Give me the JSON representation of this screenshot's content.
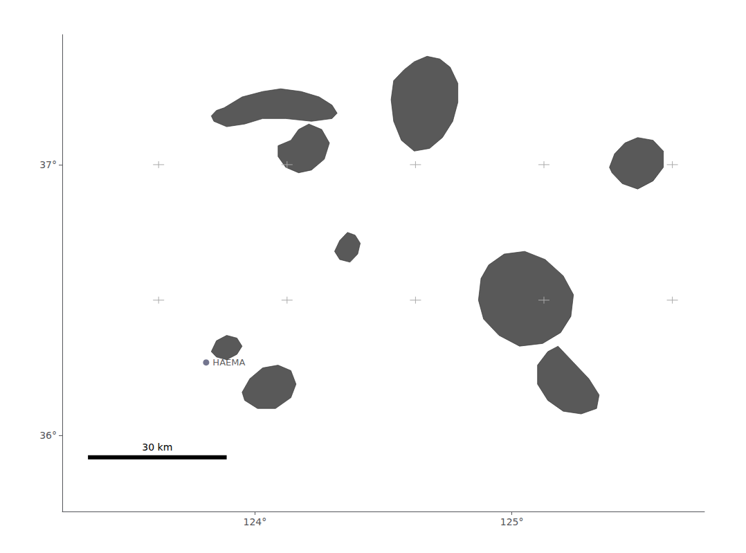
{
  "chart_data": {
    "type": "map",
    "xlim": [
      123.25,
      125.75
    ],
    "ylim": [
      35.72,
      37.48
    ],
    "xticks": [
      {
        "value": 124.0,
        "label": "124°"
      },
      {
        "value": 125.0,
        "label": "125°"
      }
    ],
    "yticks": [
      {
        "value": 36.0,
        "label": "36°"
      },
      {
        "value": 37.0,
        "label": "37°"
      }
    ],
    "grid": false,
    "series": [
      {
        "type": "polygon",
        "color": "#595959",
        "values": [
          [
            [
              123.88,
              37.21
            ],
            [
              123.95,
              37.25
            ],
            [
              124.03,
              37.27
            ],
            [
              124.1,
              37.28
            ],
            [
              124.18,
              37.27
            ],
            [
              124.25,
              37.25
            ],
            [
              124.3,
              37.22
            ],
            [
              124.32,
              37.19
            ],
            [
              124.3,
              37.17
            ],
            [
              124.22,
              37.16
            ],
            [
              124.12,
              37.17
            ],
            [
              124.03,
              37.17
            ],
            [
              123.96,
              37.15
            ],
            [
              123.89,
              37.14
            ],
            [
              123.84,
              37.16
            ],
            [
              123.83,
              37.18
            ],
            [
              123.85,
              37.2
            ]
          ],
          [
            [
              124.58,
              37.35
            ],
            [
              124.62,
              37.38
            ],
            [
              124.67,
              37.4
            ],
            [
              124.72,
              37.39
            ],
            [
              124.76,
              37.36
            ],
            [
              124.79,
              37.3
            ],
            [
              124.79,
              37.23
            ],
            [
              124.77,
              37.16
            ],
            [
              124.73,
              37.1
            ],
            [
              124.68,
              37.06
            ],
            [
              124.62,
              37.05
            ],
            [
              124.57,
              37.09
            ],
            [
              124.54,
              37.16
            ],
            [
              124.53,
              37.24
            ],
            [
              124.54,
              37.31
            ]
          ],
          [
            [
              124.14,
              37.09
            ],
            [
              124.17,
              37.13
            ],
            [
              124.21,
              37.15
            ],
            [
              124.26,
              37.13
            ],
            [
              124.29,
              37.08
            ],
            [
              124.27,
              37.02
            ],
            [
              124.22,
              36.98
            ],
            [
              124.17,
              36.97
            ],
            [
              124.12,
              36.99
            ],
            [
              124.09,
              37.03
            ],
            [
              124.09,
              37.07
            ]
          ],
          [
            [
              125.38,
              36.99
            ],
            [
              125.4,
              37.04
            ],
            [
              125.44,
              37.08
            ],
            [
              125.49,
              37.1
            ],
            [
              125.55,
              37.09
            ],
            [
              125.59,
              37.05
            ],
            [
              125.59,
              36.99
            ],
            [
              125.55,
              36.94
            ],
            [
              125.49,
              36.91
            ],
            [
              125.43,
              36.93
            ],
            [
              125.39,
              36.97
            ]
          ],
          [
            [
              124.31,
              36.68
            ],
            [
              124.33,
              36.72
            ],
            [
              124.36,
              36.75
            ],
            [
              124.39,
              36.74
            ],
            [
              124.41,
              36.71
            ],
            [
              124.4,
              36.67
            ],
            [
              124.37,
              36.64
            ],
            [
              124.33,
              36.65
            ]
          ],
          [
            [
              124.88,
              36.58
            ],
            [
              124.91,
              36.63
            ],
            [
              124.97,
              36.67
            ],
            [
              125.05,
              36.68
            ],
            [
              125.13,
              36.65
            ],
            [
              125.2,
              36.59
            ],
            [
              125.24,
              36.52
            ],
            [
              125.23,
              36.44
            ],
            [
              125.19,
              36.38
            ],
            [
              125.12,
              36.34
            ],
            [
              125.03,
              36.33
            ],
            [
              124.95,
              36.37
            ],
            [
              124.89,
              36.43
            ],
            [
              124.87,
              36.5
            ]
          ],
          [
            [
              125.18,
              36.33
            ],
            [
              125.24,
              36.27
            ],
            [
              125.3,
              36.21
            ],
            [
              125.34,
              36.15
            ],
            [
              125.33,
              36.1
            ],
            [
              125.27,
              36.08
            ],
            [
              125.2,
              36.09
            ],
            [
              125.14,
              36.13
            ],
            [
              125.1,
              36.19
            ],
            [
              125.1,
              36.26
            ],
            [
              125.14,
              36.31
            ]
          ],
          [
            [
              123.95,
              36.16
            ],
            [
              123.98,
              36.21
            ],
            [
              124.03,
              36.25
            ],
            [
              124.09,
              36.26
            ],
            [
              124.14,
              36.24
            ],
            [
              124.16,
              36.19
            ],
            [
              124.14,
              36.14
            ],
            [
              124.08,
              36.1
            ],
            [
              124.01,
              36.1
            ],
            [
              123.96,
              36.13
            ]
          ],
          [
            [
              123.83,
              36.31
            ],
            [
              123.85,
              36.35
            ],
            [
              123.89,
              36.37
            ],
            [
              123.93,
              36.36
            ],
            [
              123.95,
              36.33
            ],
            [
              123.93,
              36.3
            ],
            [
              123.89,
              36.28
            ],
            [
              123.85,
              36.29
            ]
          ]
        ]
      },
      {
        "type": "cross",
        "color": "#aaaaaa",
        "x": [
          123.625,
          124.125,
          124.625,
          125.125,
          125.625,
          123.625,
          124.125,
          124.625,
          125.125,
          125.625
        ],
        "y": [
          36.5,
          36.5,
          36.5,
          36.5,
          36.5,
          37.0,
          37.0,
          37.0,
          37.0,
          37.0
        ]
      },
      {
        "type": "scatter",
        "marker": "circle",
        "x": [
          123.81
        ],
        "y": [
          36.27
        ],
        "labels": [
          "HAEMA"
        ]
      },
      {
        "type": "scalebar",
        "color": "#000000",
        "x": [
          123.35,
          123.89
        ],
        "y": 35.92,
        "label": "30 km"
      }
    ]
  }
}
